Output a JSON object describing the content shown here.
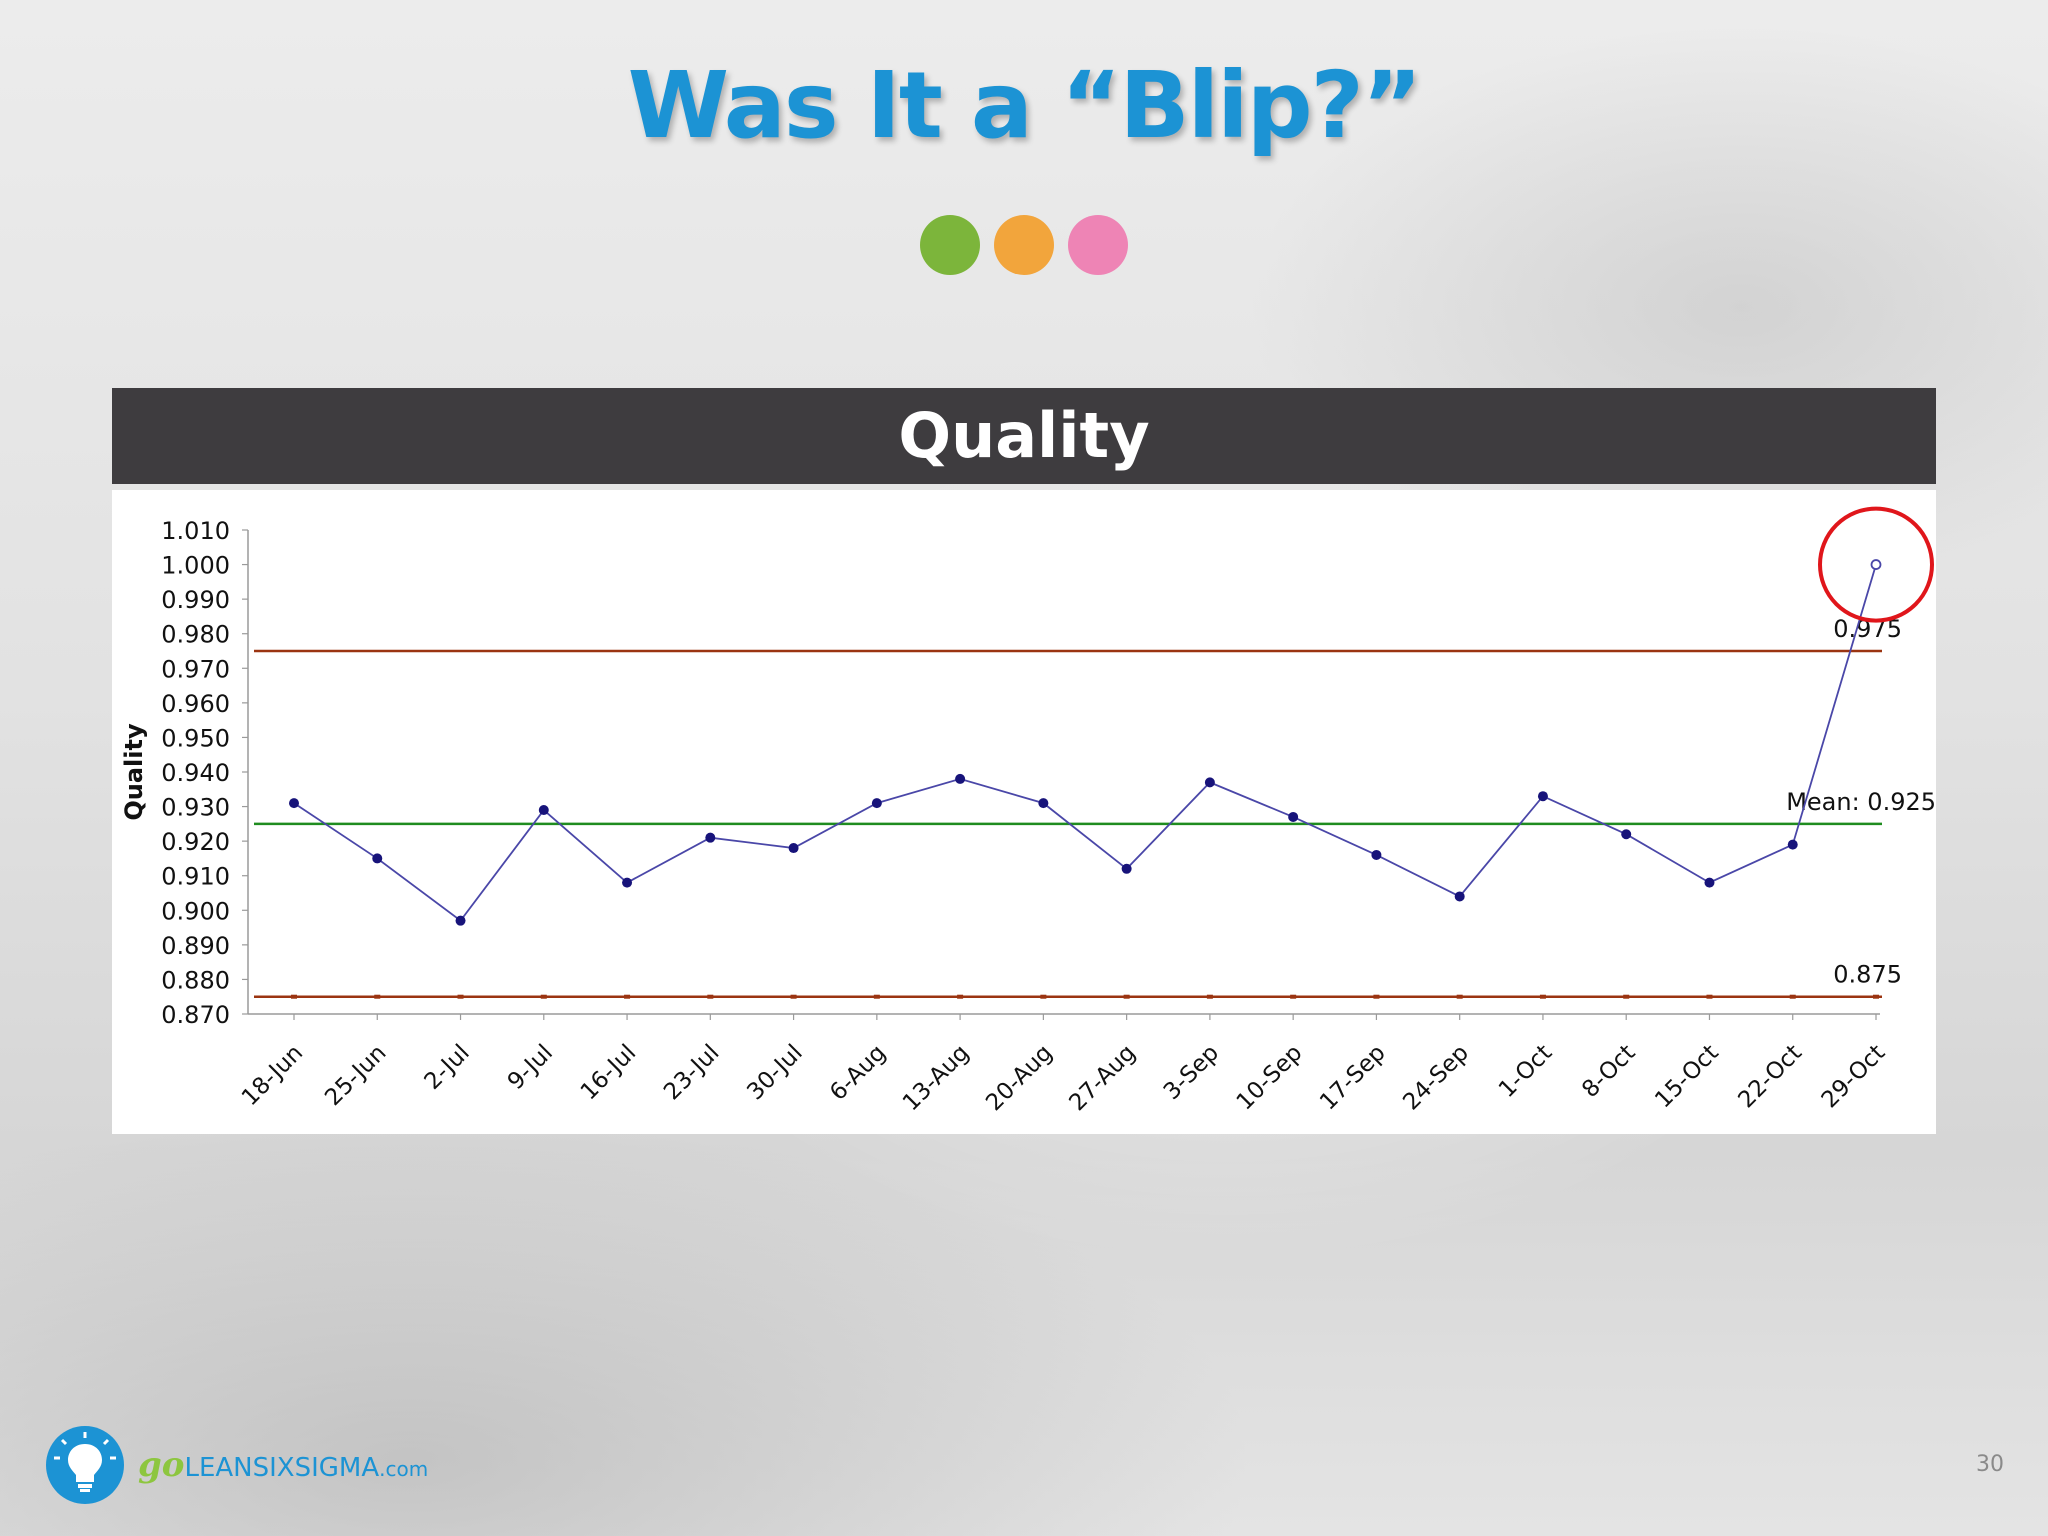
{
  "slide": {
    "title": "Was It a “Blip?”",
    "page_number": "30",
    "dots": [
      "#7cb53b",
      "#f2a53c",
      "#ee84b5"
    ],
    "logo": {
      "go": "go",
      "name": "LEANSIXSIGMA",
      "suffix": ".com",
      "icon": "lightbulb-icon"
    }
  },
  "panel": {
    "header": "Quality"
  },
  "colors": {
    "title": "#1c93d4",
    "series": "#4a47a8",
    "point": "#17137a",
    "control_limit": "#9b3411",
    "mean": "#1f8c1f",
    "highlight": "#e0161b"
  },
  "chart_data": {
    "type": "line",
    "ylabel": "Quality",
    "xlabel": "",
    "ylim": [
      0.87,
      1.01
    ],
    "yticks": [
      "1.010",
      "1.000",
      "0.990",
      "0.980",
      "0.970",
      "0.960",
      "0.950",
      "0.940",
      "0.930",
      "0.920",
      "0.910",
      "0.900",
      "0.890",
      "0.880",
      "0.870"
    ],
    "categories": [
      "18-Jun",
      "25-Jun",
      "2-Jul",
      "9-Jul",
      "16-Jul",
      "23-Jul",
      "30-Jul",
      "6-Aug",
      "13-Aug",
      "20-Aug",
      "27-Aug",
      "3-Sep",
      "10-Sep",
      "17-Sep",
      "24-Sep",
      "1-Oct",
      "8-Oct",
      "15-Oct",
      "22-Oct",
      "29-Oct"
    ],
    "series": [
      {
        "values": [
          0.931,
          0.915,
          0.897,
          0.929,
          0.908,
          0.921,
          0.918,
          0.931,
          0.938,
          0.931,
          0.912,
          0.937,
          0.927,
          0.916,
          0.904,
          0.933,
          0.922,
          0.908,
          0.919,
          1.0
        ]
      }
    ],
    "reference_lines": [
      {
        "label": "0.975",
        "value": 0.975,
        "kind": "upper-control-limit"
      },
      {
        "label": "Mean: 0.925",
        "value": 0.925,
        "kind": "mean"
      },
      {
        "label": "0.875",
        "value": 0.875,
        "kind": "lower-control-limit"
      }
    ],
    "highlight": {
      "category": "29-Oct",
      "value": 1.0,
      "shape": "red circle"
    },
    "grid": false,
    "legend": "none"
  }
}
